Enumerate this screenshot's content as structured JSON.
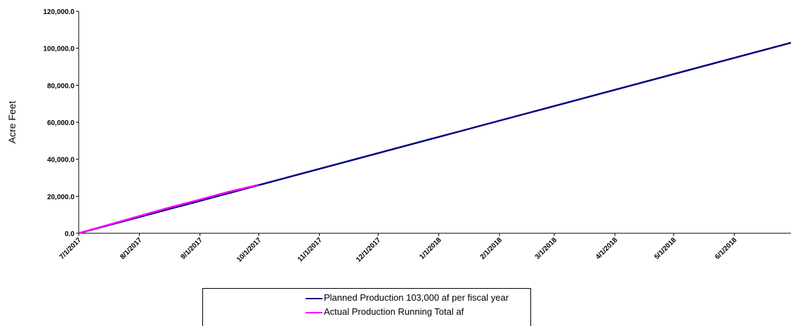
{
  "chart_data": {
    "type": "line",
    "title": "",
    "xlabel": "",
    "ylabel": "Acre Feet",
    "x_ticks": [
      "7/1/2017",
      "8/1/2017",
      "9/1/2017",
      "10/1/2017",
      "11/1/2017",
      "12/1/2017",
      "1/1/2018",
      "2/1/2018",
      "3/1/2018",
      "4/1/2018",
      "5/1/2018",
      "6/1/2018"
    ],
    "y_ticks": [
      "0.0",
      "20,000.0",
      "40,000.0",
      "60,000.0",
      "80,000.0",
      "100,000.0",
      "120,000.0"
    ],
    "xlim": [
      "7/1/2017",
      "6/30/2018"
    ],
    "ylim": [
      0,
      120000
    ],
    "grid": false,
    "legend_position": "bottom",
    "series": [
      {
        "name": "Planned Production 103,000 af per fiscal year",
        "color": "#000080",
        "x": [
          "7/1/2017",
          "6/30/2018"
        ],
        "y": [
          0,
          103000
        ]
      },
      {
        "name": "Actual Production Running Total af",
        "color": "#ff00ff",
        "x": [
          "7/1/2017",
          "7/15/2017",
          "8/1/2017",
          "8/15/2017",
          "9/1/2017",
          "9/15/2017",
          "10/1/2017"
        ],
        "y": [
          0,
          4200,
          9300,
          13500,
          18200,
          22200,
          26200
        ]
      }
    ]
  }
}
